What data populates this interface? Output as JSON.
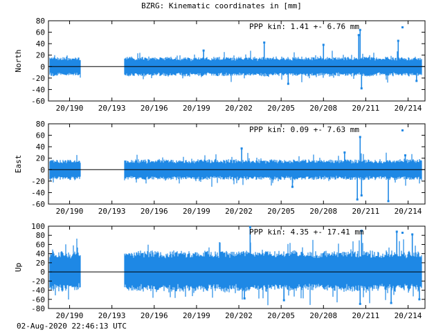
{
  "title": "BZRG: Kinematic coordinates in [mm]",
  "timestamp": "02-Aug-2020 22:46:13 UTC",
  "series_color": "#1e88e5",
  "chart_data": [
    {
      "type": "scatter",
      "ylabel": "North",
      "ylim": [
        -60,
        80
      ],
      "yticks": [
        -60,
        -40,
        -20,
        0,
        20,
        40,
        60,
        80
      ],
      "xlim": [
        188.5,
        215.2
      ],
      "xticks": [
        190,
        193,
        196,
        199,
        202,
        205,
        208,
        211,
        214
      ],
      "xtick_labels": [
        "20/190",
        "20/193",
        "20/196",
        "20/199",
        "20/202",
        "20/205",
        "20/208",
        "20/211",
        "20/214"
      ],
      "annotation": "PPP kin:   1.41 +-  6.76 mm",
      "segments": [
        [
          188.6,
          190.8
        ],
        [
          193.9,
          215.0
        ]
      ],
      "band": [
        -15,
        15
      ],
      "outliers": [
        [
          210.6,
          64
        ],
        [
          210.7,
          -38
        ],
        [
          210.5,
          55
        ],
        [
          203.8,
          42
        ],
        [
          213.3,
          45
        ],
        [
          208.0,
          38
        ],
        [
          199.5,
          28
        ],
        [
          205.5,
          -30
        ],
        [
          214.6,
          -25
        ]
      ]
    },
    {
      "type": "scatter",
      "ylabel": "East",
      "ylim": [
        -60,
        80
      ],
      "yticks": [
        -60,
        -40,
        -20,
        0,
        20,
        40,
        60,
        80
      ],
      "xlim": [
        188.5,
        215.2
      ],
      "xticks": [
        190,
        193,
        196,
        199,
        202,
        205,
        208,
        211,
        214
      ],
      "xtick_labels": [
        "20/190",
        "20/193",
        "20/196",
        "20/199",
        "20/202",
        "20/205",
        "20/208",
        "20/211",
        "20/214"
      ],
      "annotation": "PPP kin:   0.09 +-  7.63 mm",
      "segments": [
        [
          188.6,
          190.8
        ],
        [
          193.9,
          215.0
        ]
      ],
      "band": [
        -16,
        16
      ],
      "outliers": [
        [
          210.6,
          57
        ],
        [
          210.7,
          -45
        ],
        [
          210.4,
          -52
        ],
        [
          212.6,
          -55
        ],
        [
          202.2,
          37
        ],
        [
          209.5,
          30
        ],
        [
          205.8,
          -30
        ],
        [
          213.8,
          25
        ]
      ]
    },
    {
      "type": "scatter",
      "ylabel": "Up",
      "ylim": [
        -80,
        100
      ],
      "yticks": [
        -80,
        -60,
        -40,
        -20,
        0,
        20,
        40,
        60,
        80,
        100
      ],
      "xlim": [
        188.5,
        215.2
      ],
      "xticks": [
        190,
        193,
        196,
        199,
        202,
        205,
        208,
        211,
        214
      ],
      "xtick_labels": [
        "20/190",
        "20/193",
        "20/196",
        "20/199",
        "20/202",
        "20/205",
        "20/208",
        "20/211",
        "20/214"
      ],
      "annotation": "PPP kin:   4.35 +- 17.41 mm",
      "segments": [
        [
          188.6,
          190.8
        ],
        [
          193.9,
          215.0
        ]
      ],
      "band": [
        -38,
        42
      ],
      "outliers": [
        [
          202.8,
          98
        ],
        [
          210.7,
          90
        ],
        [
          213.2,
          88
        ],
        [
          214.3,
          82
        ],
        [
          212.8,
          -68
        ],
        [
          210.6,
          -70
        ],
        [
          205.2,
          -62
        ],
        [
          202.4,
          -58
        ],
        [
          214.8,
          -60
        ]
      ]
    }
  ]
}
